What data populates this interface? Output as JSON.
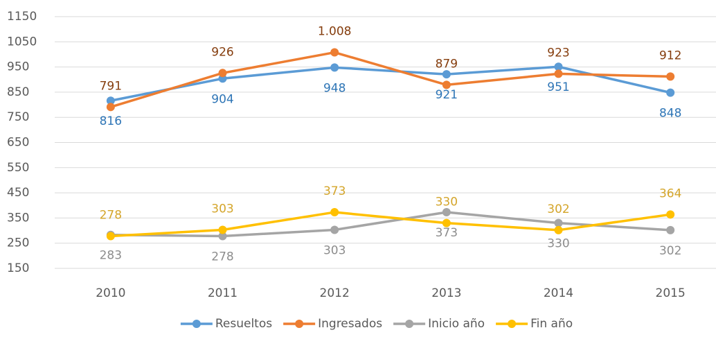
{
  "chart_data": {
    "type": "line",
    "categories": [
      "2010",
      "2011",
      "2012",
      "2013",
      "2014",
      "2015"
    ],
    "series": [
      {
        "name": "Resueltos",
        "color": "#5b9bd5",
        "label_color": "#2e75b6",
        "label_position": "below",
        "values": [
          816,
          904,
          948,
          921,
          951,
          848
        ]
      },
      {
        "name": "Ingresados",
        "color": "#ed7d31",
        "label_color": "#843c0c",
        "label_position": "above",
        "values": [
          791,
          926,
          1008,
          879,
          923,
          912
        ],
        "value_labels": [
          "791",
          "926",
          "1.008",
          "879",
          "923",
          "912"
        ]
      },
      {
        "name": "Inicio año",
        "color": "#a5a5a5",
        "label_color": "#8c8c8c",
        "label_position": "below",
        "values": [
          283,
          278,
          303,
          373,
          330,
          302
        ]
      },
      {
        "name": "Fin año",
        "color": "#ffc000",
        "label_color": "#d4a52a",
        "label_position": "above",
        "values": [
          278,
          303,
          373,
          330,
          302,
          364
        ]
      }
    ],
    "ylim": [
      150,
      1150
    ],
    "yticks": [
      150,
      250,
      350,
      450,
      550,
      650,
      750,
      850,
      950,
      1050,
      1150
    ],
    "grid": true,
    "legend": "bottom"
  }
}
